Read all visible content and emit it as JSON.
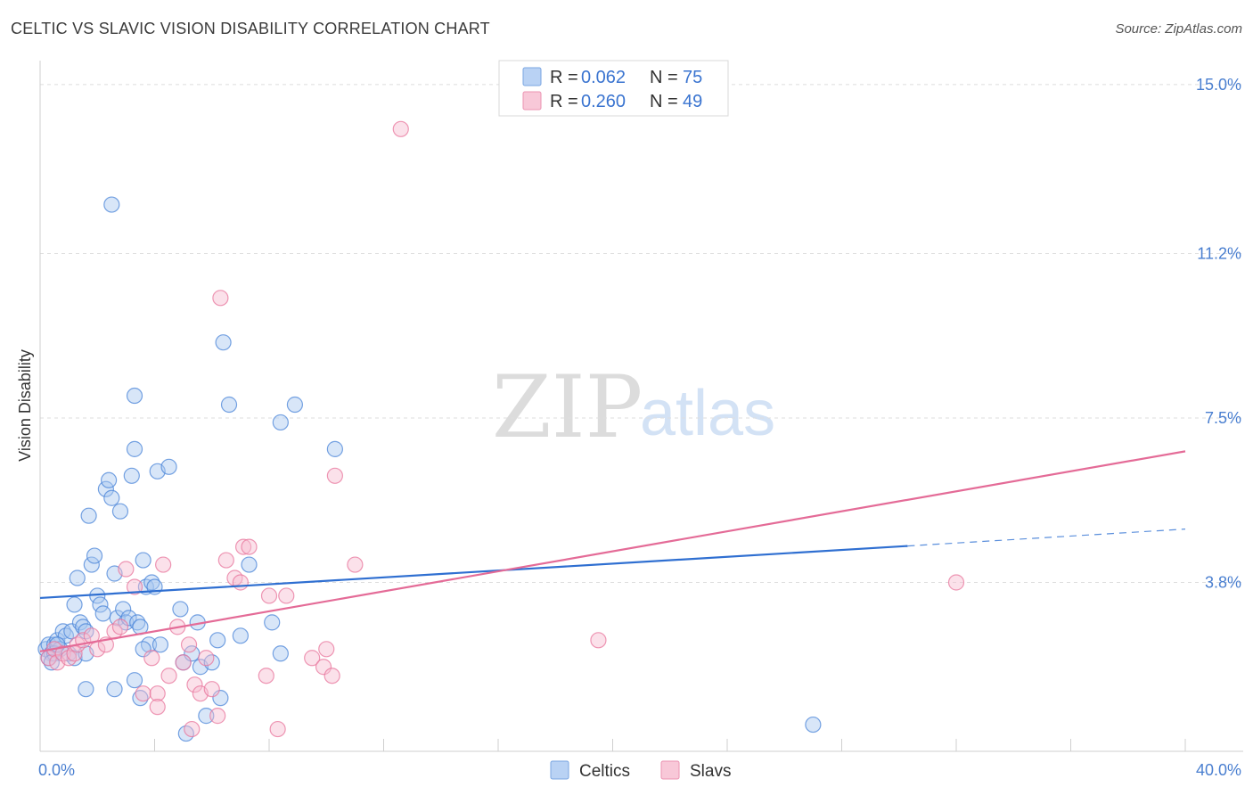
{
  "header": {
    "title": "CELTIC VS SLAVIC VISION DISABILITY CORRELATION CHART",
    "source": "Source: ZipAtlas.com"
  },
  "watermark": {
    "zip": "ZIP",
    "atlas": "atlas"
  },
  "legend": {
    "r_label": "R =",
    "n_label": "N =",
    "rows": [
      {
        "r": "0.062",
        "n": "75",
        "color": "#9ec1ee"
      },
      {
        "r": "0.260",
        "n": "49",
        "color": "#f6b3c8"
      }
    ]
  },
  "bottom_legend": [
    {
      "label": "Celtics",
      "color": "#9ec1ee"
    },
    {
      "label": "Slavs",
      "color": "#f6b3c8"
    }
  ],
  "chart_data": {
    "type": "scatter",
    "xlabel": "",
    "ylabel": "Vision Disability",
    "xlim": [
      0,
      40
    ],
    "ylim": [
      0,
      15.5
    ],
    "x_tick_labels": [
      {
        "value": 0,
        "label": "0.0%"
      },
      {
        "value": 40,
        "label": "40.0%"
      }
    ],
    "y_tick_labels": [
      {
        "value": 3.8,
        "label": "3.8%"
      },
      {
        "value": 7.5,
        "label": "7.5%"
      },
      {
        "value": 11.2,
        "label": "11.2%"
      },
      {
        "value": 15.0,
        "label": "15.0%"
      }
    ],
    "grid": "horizontal-dashed",
    "legend_position": "top-center",
    "series": [
      {
        "name": "Celtics",
        "color": "#4a84d8",
        "fill": "#a9c8f0",
        "trend": {
          "x": [
            0,
            30.3
          ],
          "y": [
            3.45,
            4.62
          ],
          "dashed_to": [
            40,
            5.0
          ]
        },
        "points": [
          [
            0.2,
            2.3
          ],
          [
            0.3,
            2.4
          ],
          [
            0.4,
            2.2
          ],
          [
            0.5,
            2.4
          ],
          [
            0.3,
            2.1
          ],
          [
            0.6,
            2.5
          ],
          [
            0.7,
            2.3
          ],
          [
            0.5,
            2.2
          ],
          [
            0.8,
            2.7
          ],
          [
            0.9,
            2.6
          ],
          [
            1.0,
            2.2
          ],
          [
            0.4,
            2.0
          ],
          [
            0.6,
            2.4
          ],
          [
            1.1,
            2.7
          ],
          [
            1.2,
            3.3
          ],
          [
            1.3,
            3.9
          ],
          [
            1.4,
            2.9
          ],
          [
            1.5,
            2.8
          ],
          [
            1.6,
            2.7
          ],
          [
            1.8,
            4.2
          ],
          [
            1.9,
            4.4
          ],
          [
            2.0,
            3.5
          ],
          [
            2.1,
            3.3
          ],
          [
            2.2,
            3.1
          ],
          [
            2.3,
            5.9
          ],
          [
            2.4,
            6.1
          ],
          [
            2.5,
            5.7
          ],
          [
            1.2,
            2.1
          ],
          [
            1.7,
            5.3
          ],
          [
            2.6,
            4.0
          ],
          [
            2.7,
            3.0
          ],
          [
            2.8,
            5.4
          ],
          [
            2.9,
            3.2
          ],
          [
            3.0,
            2.9
          ],
          [
            3.1,
            3.0
          ],
          [
            3.2,
            6.2
          ],
          [
            3.3,
            6.8
          ],
          [
            3.4,
            2.9
          ],
          [
            3.5,
            2.8
          ],
          [
            3.6,
            4.3
          ],
          [
            3.7,
            3.7
          ],
          [
            3.8,
            2.4
          ],
          [
            3.9,
            3.8
          ],
          [
            4.0,
            3.7
          ],
          [
            4.1,
            6.3
          ],
          [
            4.2,
            2.4
          ],
          [
            3.6,
            2.3
          ],
          [
            3.3,
            1.6
          ],
          [
            3.5,
            1.2
          ],
          [
            4.5,
            6.4
          ],
          [
            4.9,
            3.2
          ],
          [
            5.0,
            2.0
          ],
          [
            5.3,
            2.2
          ],
          [
            5.5,
            2.9
          ],
          [
            5.6,
            1.9
          ],
          [
            5.8,
            0.8
          ],
          [
            6.2,
            2.5
          ],
          [
            6.3,
            1.2
          ],
          [
            6.4,
            9.2
          ],
          [
            6.6,
            7.8
          ],
          [
            7.0,
            2.6
          ],
          [
            7.3,
            4.2
          ],
          [
            8.1,
            2.9
          ],
          [
            8.4,
            2.2
          ],
          [
            8.4,
            7.4
          ],
          [
            8.9,
            7.8
          ],
          [
            10.3,
            6.8
          ],
          [
            2.5,
            12.3
          ],
          [
            3.3,
            8.0
          ],
          [
            2.6,
            1.4
          ],
          [
            1.6,
            1.4
          ],
          [
            5.1,
            0.4
          ],
          [
            6.0,
            2.0
          ],
          [
            27.0,
            0.6
          ],
          [
            1.6,
            2.2
          ]
        ]
      },
      {
        "name": "Slavs",
        "color": "#e8769c",
        "fill": "#f6bcd0",
        "trend": {
          "x": [
            0,
            40
          ],
          "y": [
            2.25,
            6.75
          ]
        },
        "points": [
          [
            0.3,
            2.1
          ],
          [
            0.5,
            2.3
          ],
          [
            0.6,
            2.0
          ],
          [
            0.8,
            2.2
          ],
          [
            1.0,
            2.1
          ],
          [
            1.2,
            2.2
          ],
          [
            1.3,
            2.4
          ],
          [
            1.5,
            2.5
          ],
          [
            1.8,
            2.6
          ],
          [
            2.0,
            2.3
          ],
          [
            2.3,
            2.4
          ],
          [
            2.6,
            2.7
          ],
          [
            2.8,
            2.8
          ],
          [
            3.0,
            4.1
          ],
          [
            3.3,
            3.7
          ],
          [
            3.6,
            1.3
          ],
          [
            3.9,
            2.1
          ],
          [
            4.1,
            1.3
          ],
          [
            4.3,
            4.2
          ],
          [
            4.5,
            1.7
          ],
          [
            4.8,
            2.8
          ],
          [
            5.0,
            2.0
          ],
          [
            5.2,
            2.4
          ],
          [
            5.4,
            1.5
          ],
          [
            5.6,
            1.3
          ],
          [
            5.8,
            2.1
          ],
          [
            6.0,
            1.4
          ],
          [
            6.2,
            0.8
          ],
          [
            6.3,
            10.2
          ],
          [
            6.5,
            4.3
          ],
          [
            6.8,
            3.9
          ],
          [
            7.0,
            3.8
          ],
          [
            7.1,
            4.6
          ],
          [
            7.3,
            4.6
          ],
          [
            7.9,
            1.7
          ],
          [
            8.0,
            3.5
          ],
          [
            8.3,
            0.5
          ],
          [
            8.6,
            3.5
          ],
          [
            9.5,
            2.1
          ],
          [
            9.9,
            1.9
          ],
          [
            10.0,
            2.3
          ],
          [
            10.2,
            1.7
          ],
          [
            10.3,
            6.2
          ],
          [
            11.0,
            4.2
          ],
          [
            12.6,
            14.0
          ],
          [
            19.5,
            2.5
          ],
          [
            32.0,
            3.8
          ],
          [
            4.1,
            1.0
          ],
          [
            5.3,
            0.5
          ]
        ]
      }
    ]
  }
}
